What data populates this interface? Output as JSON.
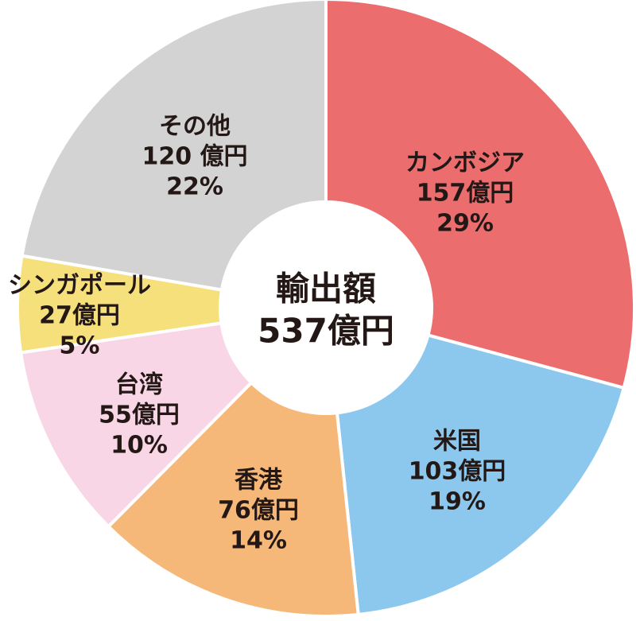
{
  "chart_data": {
    "type": "pie",
    "style": "donut",
    "start": "12 o'clock",
    "direction": "clockwise",
    "center_label": [
      "輸出額",
      "537億円"
    ],
    "slices": [
      {
        "name": "カンボジア",
        "amount": "157億円",
        "percent_label": "29%",
        "value": 157,
        "color": "#ec6d6e"
      },
      {
        "name": "米国",
        "amount": "103億円",
        "percent_label": "19%",
        "value": 103,
        "color": "#8cc8ee"
      },
      {
        "name": "香港",
        "amount": "76億円",
        "percent_label": "14%",
        "value": 76,
        "color": "#f5b878"
      },
      {
        "name": "台湾",
        "amount": "55億円",
        "percent_label": "10%",
        "value": 55,
        "color": "#f8d6e6"
      },
      {
        "name": "シンガポール",
        "amount": "27億円",
        "percent_label": "5%",
        "value": 27,
        "color": "#f6e07b"
      },
      {
        "name": "その他",
        "amount": "120 億円",
        "percent_label": "22%",
        "value": 120,
        "color": "#d3d3d3"
      }
    ]
  }
}
